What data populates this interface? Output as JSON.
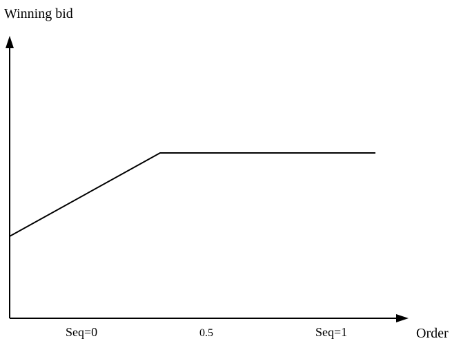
{
  "diagram": {
    "y_axis_label": "Winning bid",
    "x_axis_label": "Order",
    "x_ticks": {
      "left": "Seq=0",
      "middle": "0.5",
      "right": "Seq=1"
    },
    "colors": {
      "line": "#000000",
      "background": "#ffffff"
    }
  }
}
